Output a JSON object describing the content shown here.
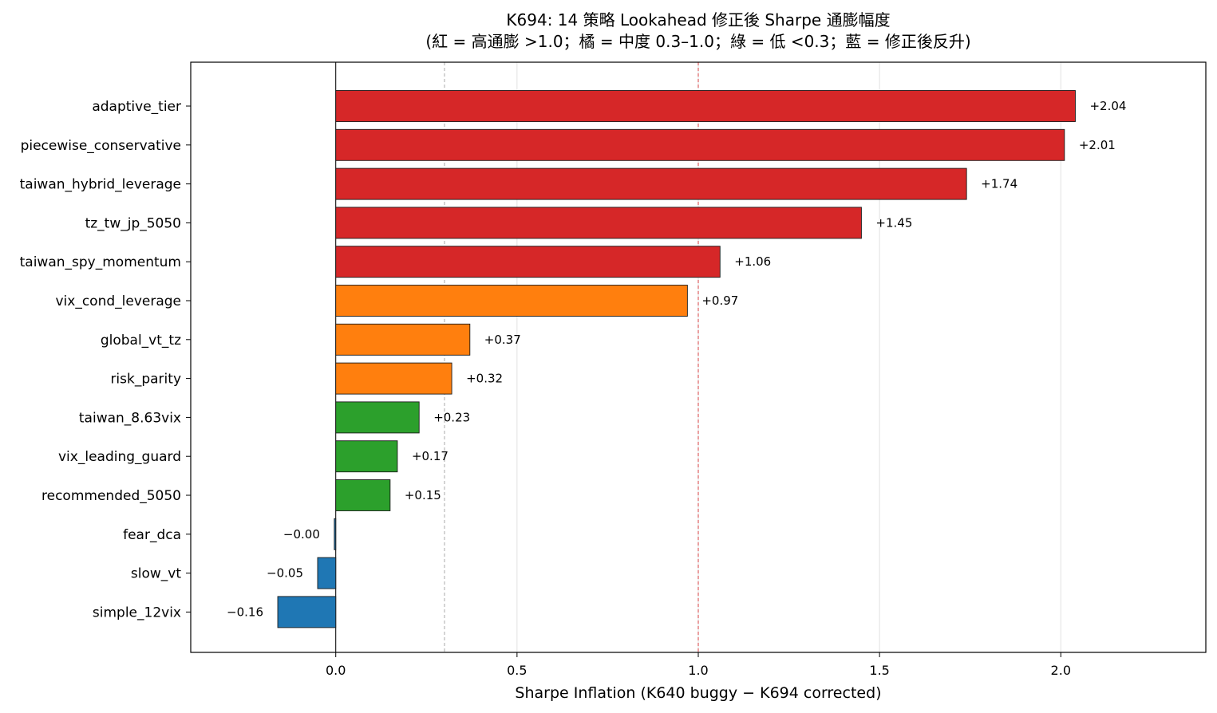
{
  "chart_data": {
    "type": "bar",
    "orientation": "horizontal",
    "title": "K694: 14 策略 Lookahead 修正後 Sharpe 通膨幅度",
    "subtitle": "(紅 = 高通膨 >1.0；橘 = 中度 0.3–1.0；綠 = 低 <0.3；藍 = 修正後反升)",
    "xlabel": "Sharpe Inflation (K640 buggy − K694 corrected)",
    "ylabel": "",
    "xlim": [
      -0.4,
      2.4
    ],
    "xticks": [
      "0.0",
      "0.5",
      "1.0",
      "1.5",
      "2.0"
    ],
    "grid": "x",
    "reference_lines": [
      {
        "value": 0.3,
        "color": "#999999",
        "style": "dashed"
      },
      {
        "value": 1.0,
        "color": "#d62728",
        "style": "dashed"
      }
    ],
    "colors": {
      "high": "#d62728",
      "medium": "#ff7f0e",
      "low": "#2ca02c",
      "negative": "#1f77b4"
    },
    "categories": [
      "adaptive_tier",
      "piecewise_conservative",
      "taiwan_hybrid_leverage",
      "tz_tw_jp_5050",
      "taiwan_spy_momentum",
      "vix_cond_leverage",
      "global_vt_tz",
      "risk_parity",
      "taiwan_8.63vix",
      "vix_leading_guard",
      "recommended_5050",
      "fear_dca",
      "slow_vt",
      "simple_12vix"
    ],
    "values": [
      2.04,
      2.01,
      1.74,
      1.45,
      1.06,
      0.97,
      0.37,
      0.32,
      0.23,
      0.17,
      0.15,
      -0.004,
      -0.05,
      -0.16
    ],
    "labels": [
      "+2.04",
      "+2.01",
      "+1.74",
      "+1.45",
      "+1.06",
      "+0.97",
      "+0.37",
      "+0.32",
      "+0.23",
      "+0.17",
      "+0.15",
      "−0.00",
      "−0.05",
      "−0.16"
    ],
    "bar_groups": [
      "high",
      "high",
      "high",
      "high",
      "high",
      "medium",
      "medium",
      "medium",
      "low",
      "low",
      "low",
      "negative",
      "negative",
      "negative"
    ]
  }
}
